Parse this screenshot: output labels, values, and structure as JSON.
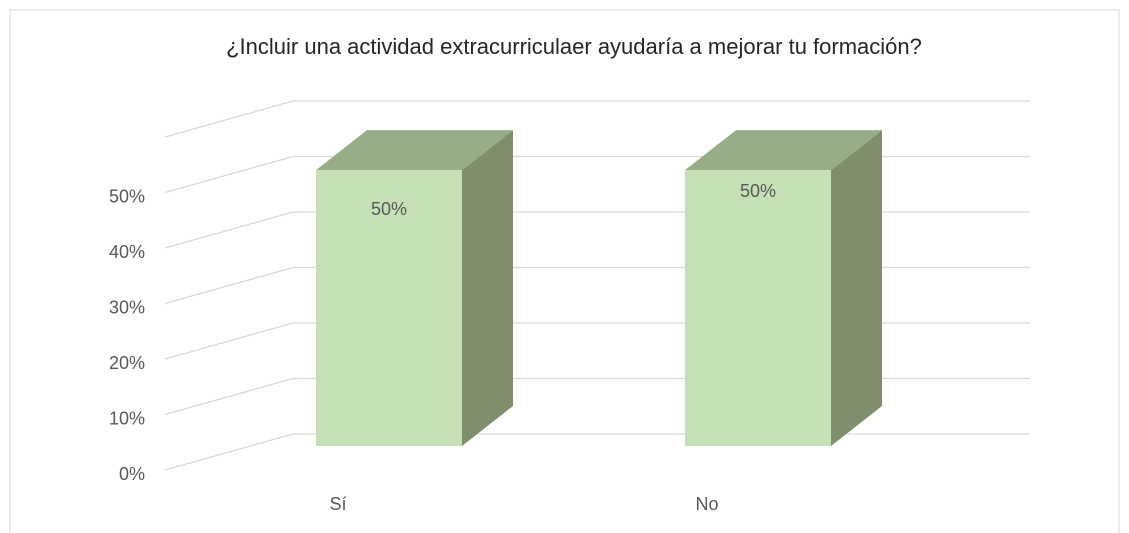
{
  "chart_data": {
    "type": "bar3d",
    "title": "¿Incluir una actividad extracurriculaer ayudaría a mejorar tu formación?",
    "categories": [
      "Sí",
      "No"
    ],
    "values": [
      50,
      50
    ],
    "value_labels": [
      "50%",
      "50%"
    ],
    "colors": {
      "front": "#c5e0b4",
      "side": "#7f8f6e",
      "top": "#97ad88"
    },
    "ylim": [
      0,
      60
    ],
    "yticks": [
      {
        "value": 0,
        "label": "0%"
      },
      {
        "value": 10,
        "label": "10%"
      },
      {
        "value": 20,
        "label": "20%"
      },
      {
        "value": 30,
        "label": "30%"
      },
      {
        "value": 40,
        "label": "40%"
      },
      {
        "value": 50,
        "label": "50%"
      }
    ],
    "grid": true
  }
}
